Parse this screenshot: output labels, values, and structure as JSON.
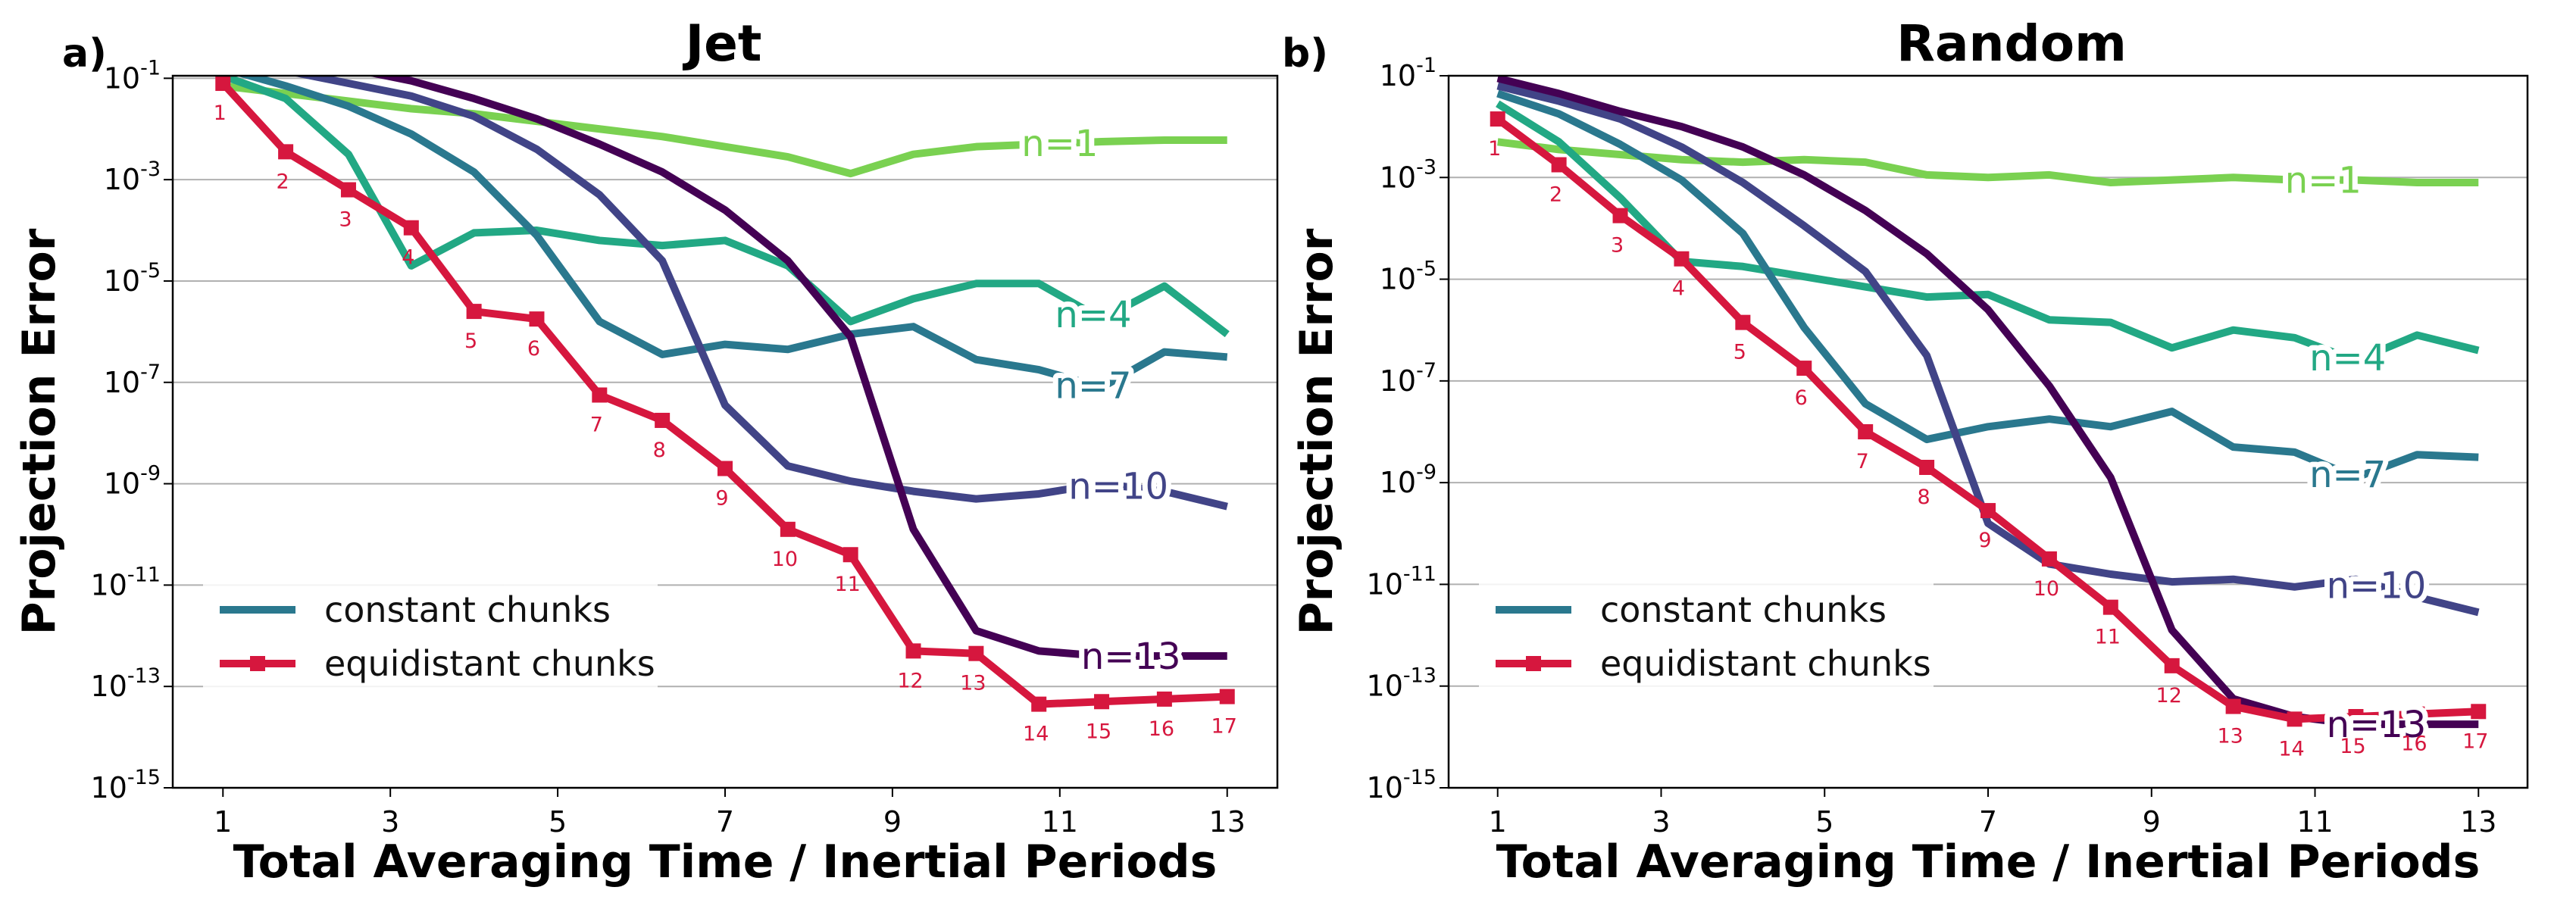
{
  "figure": {
    "y_axis_label": "Projection Error",
    "x_axis_label": "Total Averaging Time / Inertial Periods"
  },
  "legend": {
    "constant_label": "constant chunks",
    "equidistant_label": "equidistant chunks"
  },
  "colors": {
    "n1": "#7ad151",
    "n4": "#22a884",
    "n7": "#2a788e",
    "n10": "#414487",
    "n13": "#440154",
    "equidistant": "#d6173e",
    "grid": "#b0b0b0"
  },
  "chart_data": [
    {
      "type": "line",
      "panel_label": "a)",
      "title": "Jet",
      "xlabel": "Total Averaging Time / Inertial Periods",
      "ylabel": "Projection Error",
      "xlim": [
        0.4,
        13.6
      ],
      "ylim_log10": [
        -15,
        -0.95
      ],
      "x_ticks": [
        "1",
        "3",
        "5",
        "7",
        "9",
        "11",
        "13"
      ],
      "y_tick_exponents": [
        "-1",
        "-3",
        "-5",
        "-7",
        "-9",
        "-11",
        "-13",
        "-15"
      ],
      "grid": "horizontal",
      "x": [
        1,
        1.75,
        2.5,
        3.25,
        4,
        4.75,
        5.5,
        6.25,
        7,
        7.75,
        8.5,
        9.25,
        10,
        10.75,
        11.5,
        12.25,
        13
      ],
      "constant_series": [
        {
          "name": "n=1",
          "label_x": 11.0,
          "log10_values": [
            -1.15,
            -1.3,
            -1.45,
            -1.6,
            -1.7,
            -1.85,
            -2.0,
            -2.15,
            -2.35,
            -2.55,
            -2.88,
            -2.5,
            -2.35,
            -2.3,
            -2.25,
            -2.22,
            -2.22
          ]
        },
        {
          "name": "n=4",
          "label_x": 11.4,
          "log10_values": [
            -0.95,
            -1.4,
            -2.5,
            -4.7,
            -4.05,
            -4.0,
            -4.2,
            -4.3,
            -4.2,
            -4.7,
            -5.8,
            -5.35,
            -5.05,
            -5.05,
            -5.75,
            -5.1,
            -6.05
          ]
        },
        {
          "name": "n=7",
          "label_x": 11.4,
          "log10_values": [
            -0.8,
            -1.15,
            -1.55,
            -2.1,
            -2.85,
            -4.1,
            -5.8,
            -6.45,
            -6.25,
            -6.35,
            -6.05,
            -5.9,
            -6.55,
            -6.75,
            -7.1,
            -6.4,
            -6.5
          ]
        },
        {
          "name": "n=10",
          "label_x": 11.7,
          "log10_values": [
            -0.7,
            -0.85,
            -1.1,
            -1.35,
            -1.75,
            -2.4,
            -3.3,
            -4.6,
            -7.45,
            -8.65,
            -8.95,
            -9.15,
            -9.3,
            -9.2,
            -9.0,
            -9.15,
            -9.45
          ]
        },
        {
          "name": "n=13",
          "label_x": 11.85,
          "log10_values": [
            -0.5,
            -0.6,
            -0.8,
            -1.05,
            -1.4,
            -1.8,
            -2.3,
            -2.85,
            -3.6,
            -4.6,
            -6.1,
            -9.9,
            -11.9,
            -12.3,
            -12.4,
            -12.4,
            -12.4
          ]
        }
      ],
      "equidistant_series": {
        "name": "equidistant chunks",
        "point_labels": [
          "1",
          "2",
          "3",
          "4",
          "5",
          "6",
          "7",
          "8",
          "9",
          "10",
          "11",
          "12",
          "13",
          "14",
          "15",
          "16",
          "17"
        ],
        "log10_values": [
          -1.1,
          -2.45,
          -3.2,
          -3.95,
          -5.6,
          -5.75,
          -7.25,
          -7.75,
          -8.7,
          -9.9,
          -10.4,
          -12.3,
          -12.35,
          -13.35,
          -13.3,
          -13.25,
          -13.2
        ]
      }
    },
    {
      "type": "line",
      "panel_label": "b)",
      "title": "Random",
      "xlabel": "Total Averaging Time / Inertial Periods",
      "ylabel": "Projection Error",
      "xlim": [
        0.4,
        13.6
      ],
      "ylim_log10": [
        -15,
        -1
      ],
      "x_ticks": [
        "1",
        "3",
        "5",
        "7",
        "9",
        "11",
        "13"
      ],
      "y_tick_exponents": [
        "-1",
        "-3",
        "-5",
        "-7",
        "-9",
        "-11",
        "-13",
        "-15"
      ],
      "grid": "horizontal",
      "x": [
        1,
        1.75,
        2.5,
        3.25,
        4,
        4.75,
        5.5,
        6.25,
        7,
        7.75,
        8.5,
        9.25,
        10,
        10.75,
        11.5,
        12.25,
        13
      ],
      "constant_series": [
        {
          "name": "n=1",
          "label_x": 11.1,
          "log10_values": [
            -2.3,
            -2.45,
            -2.55,
            -2.65,
            -2.7,
            -2.65,
            -2.7,
            -2.95,
            -3.0,
            -2.95,
            -3.1,
            -3.05,
            -3.0,
            -3.05,
            -3.05,
            -3.1,
            -3.1
          ]
        },
        {
          "name": "n=4",
          "label_x": 11.4,
          "log10_values": [
            -1.55,
            -2.3,
            -3.4,
            -4.65,
            -4.75,
            -4.95,
            -5.15,
            -5.35,
            -5.3,
            -5.8,
            -5.85,
            -6.35,
            -6.0,
            -6.15,
            -6.6,
            -6.1,
            -6.4
          ]
        },
        {
          "name": "n=7",
          "label_x": 11.4,
          "log10_values": [
            -1.35,
            -1.75,
            -2.35,
            -3.05,
            -4.1,
            -5.95,
            -7.45,
            -8.15,
            -7.9,
            -7.75,
            -7.9,
            -7.6,
            -8.3,
            -8.4,
            -8.9,
            -8.45,
            -8.5
          ]
        },
        {
          "name": "n=10",
          "label_x": 11.75,
          "log10_values": [
            -1.2,
            -1.5,
            -1.85,
            -2.4,
            -3.1,
            -3.95,
            -4.85,
            -6.5,
            -9.8,
            -10.6,
            -10.8,
            -10.95,
            -10.9,
            -11.05,
            -10.9,
            -11.25,
            -11.55
          ]
        },
        {
          "name": "n=13",
          "label_x": 11.75,
          "log10_values": [
            -1.05,
            -1.35,
            -1.7,
            -2.0,
            -2.4,
            -2.95,
            -3.65,
            -4.5,
            -5.6,
            -7.1,
            -8.9,
            -11.9,
            -13.25,
            -13.6,
            -13.75,
            -13.75,
            -13.75
          ]
        }
      ],
      "equidistant_series": {
        "name": "equidistant chunks",
        "point_labels": [
          "1",
          "2",
          "3",
          "4",
          "5",
          "6",
          "7",
          "8",
          "9",
          "10",
          "11",
          "12",
          "13",
          "14",
          "15",
          "16",
          "17"
        ],
        "log10_values": [
          -1.85,
          -2.75,
          -3.75,
          -4.6,
          -5.85,
          -6.75,
          -8.0,
          -8.7,
          -9.55,
          -10.5,
          -11.45,
          -12.6,
          -13.4,
          -13.65,
          -13.6,
          -13.55,
          -13.5
        ]
      }
    }
  ]
}
